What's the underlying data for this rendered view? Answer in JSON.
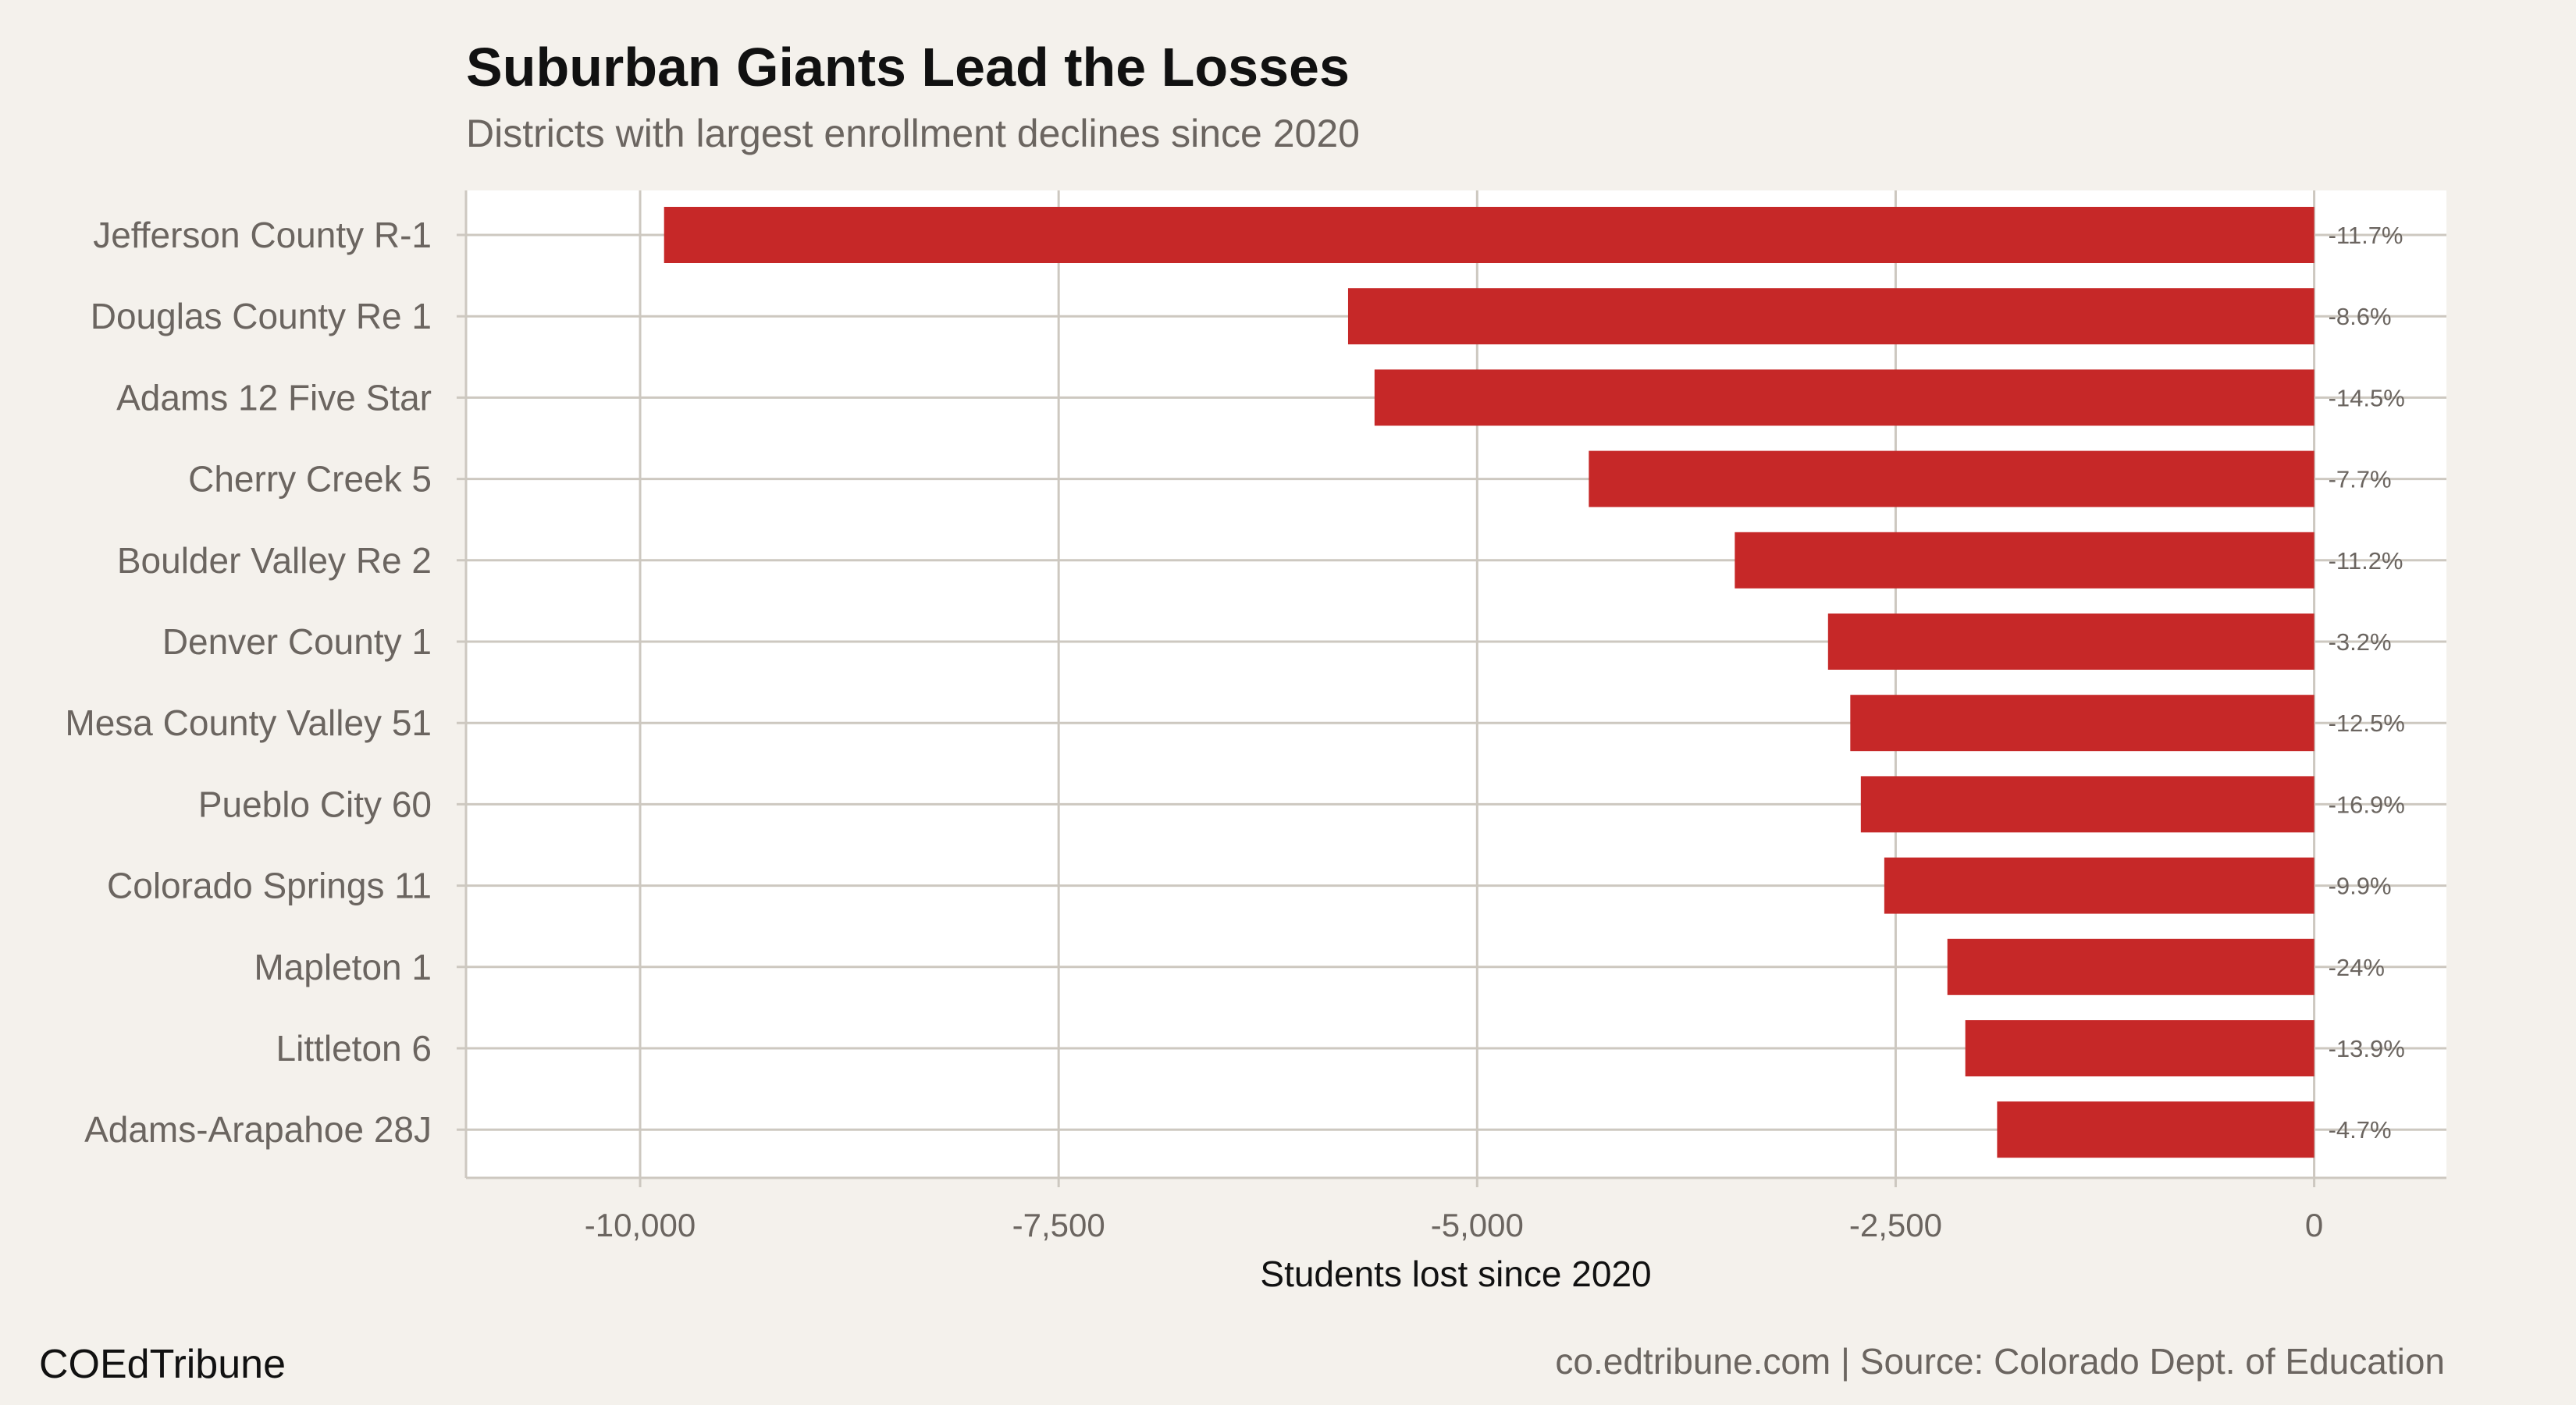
{
  "colors": {
    "background": "#f4f1ec",
    "panel": "#ffffff",
    "bar": "#c62828",
    "grid": "#cdc8c0",
    "text_muted": "#6b6560"
  },
  "footer": {
    "brand": "COEdTribune",
    "source": "co.edtribune.com | Source: Colorado Dept. of Education"
  },
  "chart_data": {
    "type": "bar",
    "orientation": "horizontal",
    "title": "Suburban Giants Lead the Losses",
    "subtitle": "Districts with largest enrollment declines since 2020",
    "xlabel": "Students lost since 2020",
    "ylabel": "",
    "xlim": [
      -11040,
      790
    ],
    "grid": true,
    "xticks": [
      -10000,
      -7500,
      -5000,
      -2500,
      0
    ],
    "xtick_labels": [
      "-10,000",
      "-7,500",
      "-5,000",
      "-2,500",
      "0"
    ],
    "categories": [
      "Jefferson County R-1",
      "Douglas County Re 1",
      "Adams 12 Five Star",
      "Cherry Creek 5",
      "Boulder Valley Re 2",
      "Denver County 1",
      "Mesa County Valley 51",
      "Pueblo City 60",
      "Colorado Springs 11",
      "Mapleton 1",
      "Littleton 6",
      "Adams-Arapahoe 28J"
    ],
    "values": [
      -9857,
      -5771,
      -5613,
      -4333,
      -3461,
      -2904,
      -2771,
      -2708,
      -2568,
      -2191,
      -2084,
      -1894
    ],
    "pct_labels": [
      "-11.7%",
      "-8.6%",
      "-14.5%",
      "-7.7%",
      "-11.2%",
      "-3.2%",
      "-12.5%",
      "-16.9%",
      "-9.9%",
      "-24%",
      "-13.9%",
      "-4.7%"
    ]
  }
}
